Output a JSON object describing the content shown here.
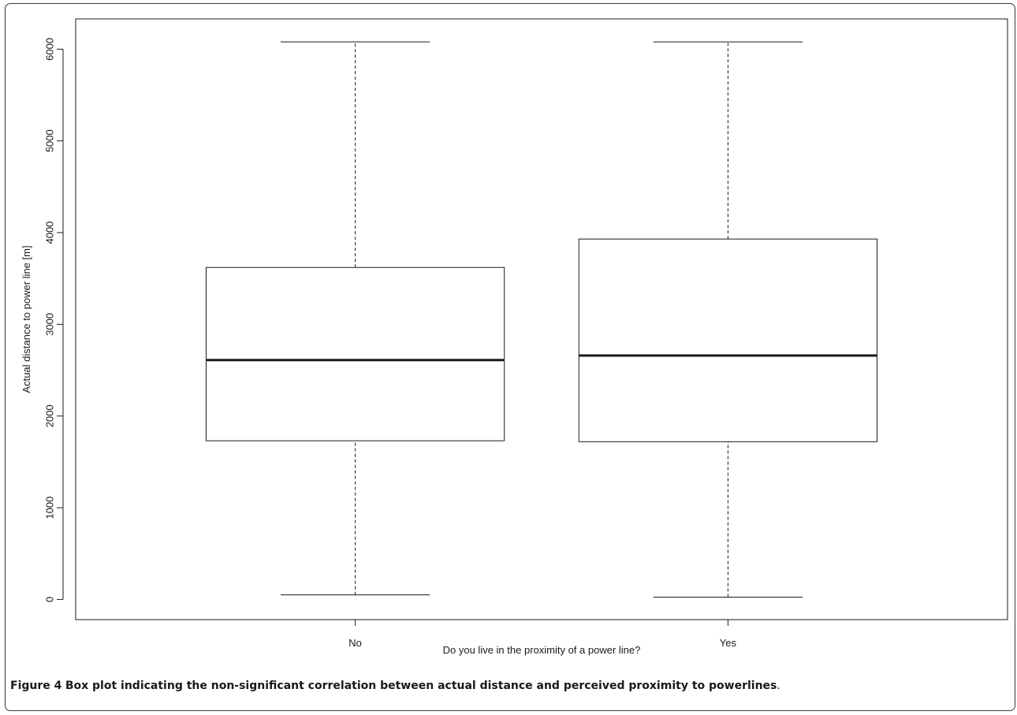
{
  "chart_data": {
    "type": "boxplot",
    "xlabel": "Do you live in the proximity of a power line?",
    "ylabel": "Actual distance to power line [m]",
    "ylim": [
      -220,
      6330
    ],
    "yticks": [
      0,
      1000,
      2000,
      3000,
      4000,
      5000,
      6000
    ],
    "grid": false,
    "categories": [
      "No",
      "Yes"
    ],
    "boxes": [
      {
        "category": "No",
        "whisker_low": 50,
        "q1": 1730,
        "median": 2610,
        "q3": 3620,
        "whisker_high": 6080
      },
      {
        "category": "Yes",
        "whisker_low": 25,
        "q1": 1720,
        "median": 2660,
        "q3": 3930,
        "whisker_high": 6080
      }
    ]
  },
  "caption": {
    "label": "Figure 4",
    "text": "Box plot indicating the non-significant correlation between actual distance and perceived proximity to powerlines",
    "end": "."
  },
  "colors": {
    "ink": "#1a1a1a",
    "frame": "#3a3a3a"
  }
}
